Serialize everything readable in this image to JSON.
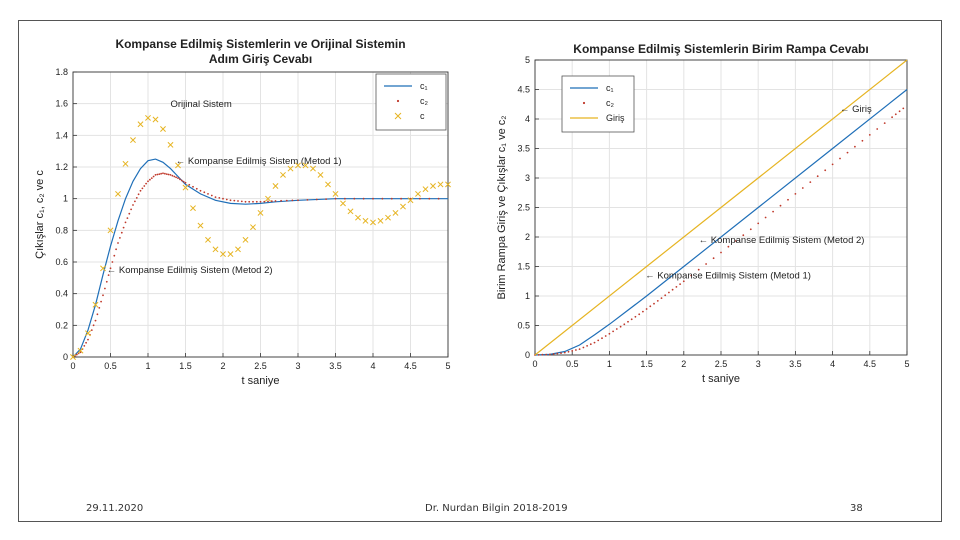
{
  "footer": {
    "date": "29.11.2020",
    "author": "Dr. Nurdan Bilgin 2018-2019",
    "page": "38"
  },
  "colors": {
    "c1": "#1f6fb8",
    "c2": "#c0392b",
    "c": "#e6b422",
    "ramp": "#e6b422"
  },
  "chart_data": [
    {
      "type": "line",
      "title_lines": [
        "Kompanse Edilmiş Sistemlerin ve Orijinal Sistemin",
        "Adım Giriş Cevabı"
      ],
      "xlabel": "t saniye",
      "ylabel": "Çıkışlar c₁, c₂ ve c",
      "xlim": [
        0,
        5
      ],
      "ylim": [
        0,
        1.8
      ],
      "xticks": [
        0,
        0.5,
        1,
        1.5,
        2,
        2.5,
        3,
        3.5,
        4,
        4.5,
        5
      ],
      "yticks": [
        0,
        0.2,
        0.4,
        0.6,
        0.8,
        1,
        1.2,
        1.4,
        1.6,
        1.8
      ],
      "grid": true,
      "legend": [
        "c₁",
        "c₂",
        "c"
      ],
      "legend_position": "top-right",
      "annotations": [
        "Orijinal Sistem",
        "← Kompanse Edilmiş Sistem (Metod 1)",
        "← Kompanse Edilmiş Sistem (Metod 2)"
      ],
      "series": [
        {
          "name": "c₁",
          "style": "line",
          "x": [
            0,
            0.1,
            0.2,
            0.3,
            0.4,
            0.5,
            0.6,
            0.7,
            0.8,
            0.9,
            1.0,
            1.1,
            1.2,
            1.3,
            1.4,
            1.5,
            1.7,
            1.9,
            2.1,
            2.3,
            2.5,
            2.7,
            3.0,
            3.5,
            4.0,
            4.5,
            5.0
          ],
          "y": [
            0,
            0.05,
            0.17,
            0.33,
            0.52,
            0.7,
            0.86,
            1.0,
            1.11,
            1.19,
            1.24,
            1.25,
            1.23,
            1.19,
            1.14,
            1.09,
            1.03,
            0.99,
            0.97,
            0.965,
            0.97,
            0.98,
            0.99,
            1.0,
            1.0,
            1.0,
            1.0
          ]
        },
        {
          "name": "c₂",
          "style": "dots",
          "x": [
            0,
            0.1,
            0.2,
            0.3,
            0.4,
            0.5,
            0.6,
            0.7,
            0.8,
            0.9,
            1.0,
            1.1,
            1.2,
            1.3,
            1.4,
            1.5,
            1.7,
            1.9,
            2.1,
            2.3,
            2.5,
            2.7,
            3.0,
            3.5,
            4.0,
            4.5,
            5.0
          ],
          "y": [
            0,
            0.03,
            0.11,
            0.23,
            0.39,
            0.56,
            0.72,
            0.85,
            0.96,
            1.05,
            1.11,
            1.15,
            1.16,
            1.15,
            1.13,
            1.1,
            1.05,
            1.01,
            0.99,
            0.98,
            0.98,
            0.985,
            0.99,
            1.0,
            1.0,
            1.0,
            1.0
          ]
        },
        {
          "name": "c",
          "style": "x",
          "x": [
            0,
            0.1,
            0.2,
            0.3,
            0.4,
            0.5,
            0.6,
            0.7,
            0.8,
            0.9,
            1.0,
            1.1,
            1.2,
            1.3,
            1.4,
            1.5,
            1.6,
            1.7,
            1.8,
            1.9,
            2.0,
            2.1,
            2.2,
            2.3,
            2.4,
            2.5,
            2.6,
            2.7,
            2.8,
            2.9,
            3.0,
            3.1,
            3.2,
            3.3,
            3.4,
            3.5,
            3.6,
            3.7,
            3.8,
            3.9,
            4.0,
            4.1,
            4.2,
            4.3,
            4.4,
            4.5,
            4.6,
            4.7,
            4.8,
            4.9,
            5.0
          ],
          "y": [
            0,
            0.04,
            0.15,
            0.33,
            0.56,
            0.8,
            1.03,
            1.22,
            1.37,
            1.47,
            1.51,
            1.5,
            1.44,
            1.34,
            1.21,
            1.07,
            0.94,
            0.83,
            0.74,
            0.68,
            0.65,
            0.65,
            0.68,
            0.74,
            0.82,
            0.91,
            1.0,
            1.08,
            1.15,
            1.19,
            1.21,
            1.21,
            1.19,
            1.15,
            1.09,
            1.03,
            0.97,
            0.92,
            0.88,
            0.86,
            0.85,
            0.86,
            0.88,
            0.91,
            0.95,
            0.99,
            1.03,
            1.06,
            1.08,
            1.09,
            1.09
          ]
        }
      ]
    },
    {
      "type": "line",
      "title_lines": [
        "Kompanse Edilmiş Sistemlerin Birim Rampa Cevabı"
      ],
      "xlabel": "t saniye",
      "ylabel": "Birim Rampa Giriş ve Çıkışlar c₁ ve c₂",
      "xlim": [
        0,
        5
      ],
      "ylim": [
        0,
        5
      ],
      "xticks": [
        0,
        0.5,
        1,
        1.5,
        2,
        2.5,
        3,
        3.5,
        4,
        4.5,
        5
      ],
      "yticks": [
        0,
        0.5,
        1,
        1.5,
        2,
        2.5,
        3,
        3.5,
        4,
        4.5,
        5
      ],
      "grid": true,
      "legend": [
        "c₁",
        "c₂",
        "Giriş"
      ],
      "legend_position": "top-left",
      "annotations": [
        "← Giriş",
        "← Kompanse Edilmiş Sistem (Metod 2)",
        "← Kompanse Edilmiş Sistem (Metod 1)"
      ],
      "series": [
        {
          "name": "c₁",
          "style": "line",
          "x": [
            0,
            0.2,
            0.4,
            0.6,
            0.8,
            1.0,
            1.5,
            2.0,
            3.0,
            4.0,
            5.0
          ],
          "y": [
            0,
            0.01,
            0.06,
            0.17,
            0.34,
            0.52,
            1.0,
            1.5,
            2.5,
            3.5,
            4.5
          ]
        },
        {
          "name": "c₂",
          "style": "dots",
          "x": [
            0,
            0.2,
            0.4,
            0.6,
            0.8,
            1.0,
            1.2,
            1.4,
            1.6,
            1.8,
            2.0,
            2.4,
            2.8,
            3.2,
            3.6,
            4.0,
            4.4,
            4.8,
            5.0
          ],
          "y": [
            0,
            0.01,
            0.04,
            0.1,
            0.21,
            0.36,
            0.52,
            0.69,
            0.87,
            1.06,
            1.25,
            1.64,
            2.03,
            2.43,
            2.83,
            3.23,
            3.63,
            4.03,
            4.23
          ]
        },
        {
          "name": "Giriş",
          "style": "line",
          "x": [
            0,
            5
          ],
          "y": [
            0,
            5
          ]
        }
      ]
    }
  ]
}
